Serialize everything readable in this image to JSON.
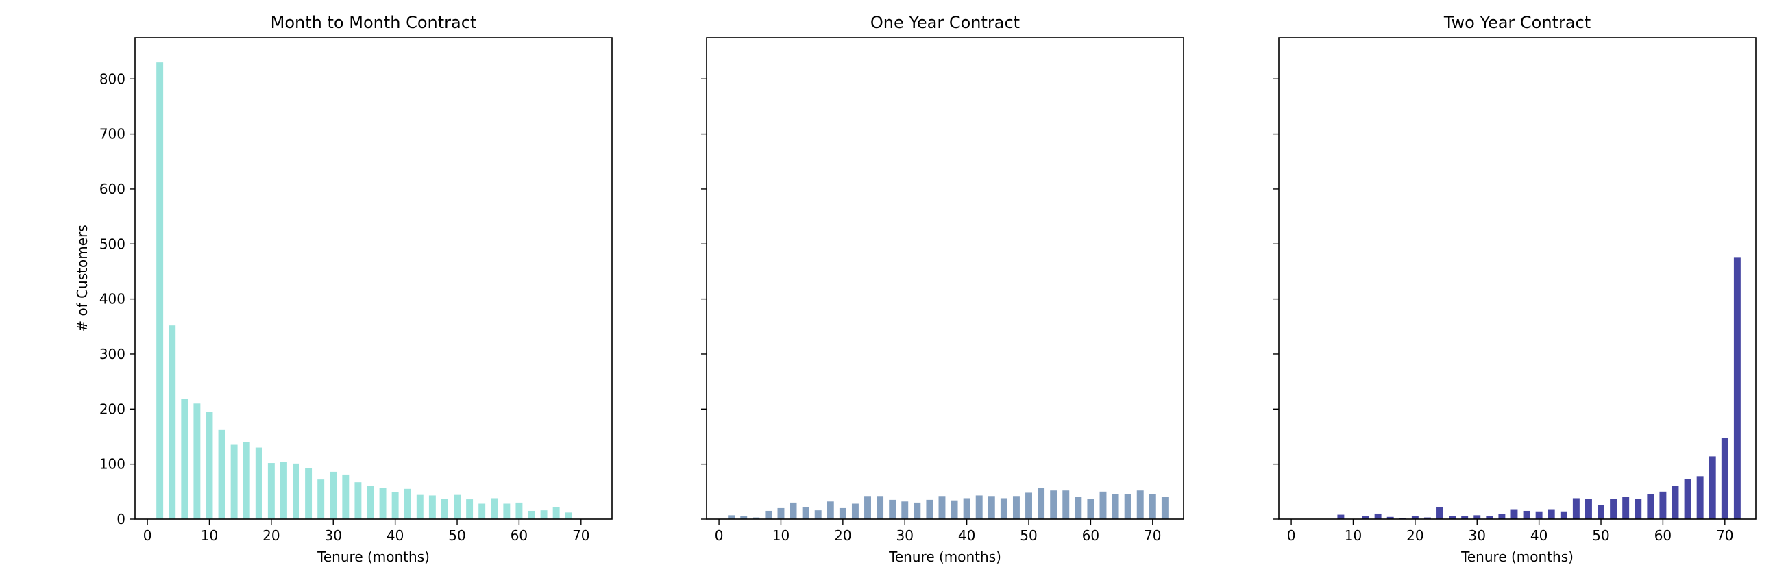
{
  "chart_data": [
    {
      "type": "bar",
      "title": "Month to Month Contract",
      "xlabel": "Tenure (months)",
      "ylabel": "# of Customers",
      "xlim": [
        -2,
        75
      ],
      "ylim": [
        0,
        875
      ],
      "xticks": [
        0,
        10,
        20,
        30,
        40,
        50,
        60,
        70
      ],
      "yticks": [
        0,
        100,
        200,
        300,
        400,
        500,
        600,
        700,
        800
      ],
      "color": "#9be3dc",
      "x": [
        2,
        4,
        6,
        8,
        10,
        12,
        14,
        16,
        18,
        20,
        22,
        24,
        26,
        28,
        30,
        32,
        34,
        36,
        38,
        40,
        42,
        44,
        46,
        48,
        50,
        52,
        54,
        56,
        58,
        60,
        62,
        64,
        66,
        68
      ],
      "values": [
        830,
        352,
        218,
        210,
        195,
        162,
        135,
        140,
        130,
        102,
        104,
        101,
        93,
        72,
        86,
        81,
        67,
        60,
        57,
        49,
        55,
        44,
        43,
        37,
        44,
        36,
        28,
        38,
        28,
        30,
        15,
        16,
        22,
        12
      ]
    },
    {
      "type": "bar",
      "title": "One Year Contract",
      "xlabel": "Tenure (months)",
      "ylabel": "",
      "xlim": [
        -2,
        75
      ],
      "ylim": [
        0,
        875
      ],
      "xticks": [
        0,
        10,
        20,
        30,
        40,
        50,
        60,
        70
      ],
      "yticks": [
        0,
        100,
        200,
        300,
        400,
        500,
        600,
        700,
        800
      ],
      "color": "#849fbf",
      "x": [
        2,
        4,
        6,
        8,
        10,
        12,
        14,
        16,
        18,
        20,
        22,
        24,
        26,
        28,
        30,
        32,
        34,
        36,
        38,
        40,
        42,
        44,
        46,
        48,
        50,
        52,
        54,
        56,
        58,
        60,
        62,
        64,
        66,
        68,
        70,
        72
      ],
      "values": [
        7,
        5,
        3,
        15,
        20,
        30,
        22,
        16,
        32,
        20,
        28,
        42,
        42,
        35,
        32,
        30,
        35,
        42,
        34,
        38,
        43,
        42,
        38,
        42,
        48,
        56,
        52,
        52,
        40,
        37,
        50,
        46,
        46,
        52,
        45,
        40
      ]
    },
    {
      "type": "bar",
      "title": "Two Year Contract",
      "xlabel": "Tenure (months)",
      "ylabel": "",
      "xlim": [
        -2,
        75
      ],
      "ylim": [
        0,
        875
      ],
      "xticks": [
        0,
        10,
        20,
        30,
        40,
        50,
        60,
        70
      ],
      "yticks": [
        0,
        100,
        200,
        300,
        400,
        500,
        600,
        700,
        800
      ],
      "color": "#4646a3",
      "x": [
        8,
        12,
        14,
        16,
        18,
        20,
        22,
        24,
        26,
        28,
        30,
        32,
        34,
        36,
        38,
        40,
        42,
        44,
        46,
        48,
        50,
        52,
        54,
        56,
        58,
        60,
        62,
        64,
        66,
        68,
        70,
        72
      ],
      "values": [
        8,
        6,
        10,
        4,
        2,
        5,
        3,
        22,
        5,
        5,
        7,
        5,
        9,
        18,
        15,
        14,
        18,
        14,
        38,
        37,
        26,
        37,
        40,
        37,
        46,
        50,
        60,
        73,
        78,
        114,
        148,
        475
      ]
    }
  ]
}
